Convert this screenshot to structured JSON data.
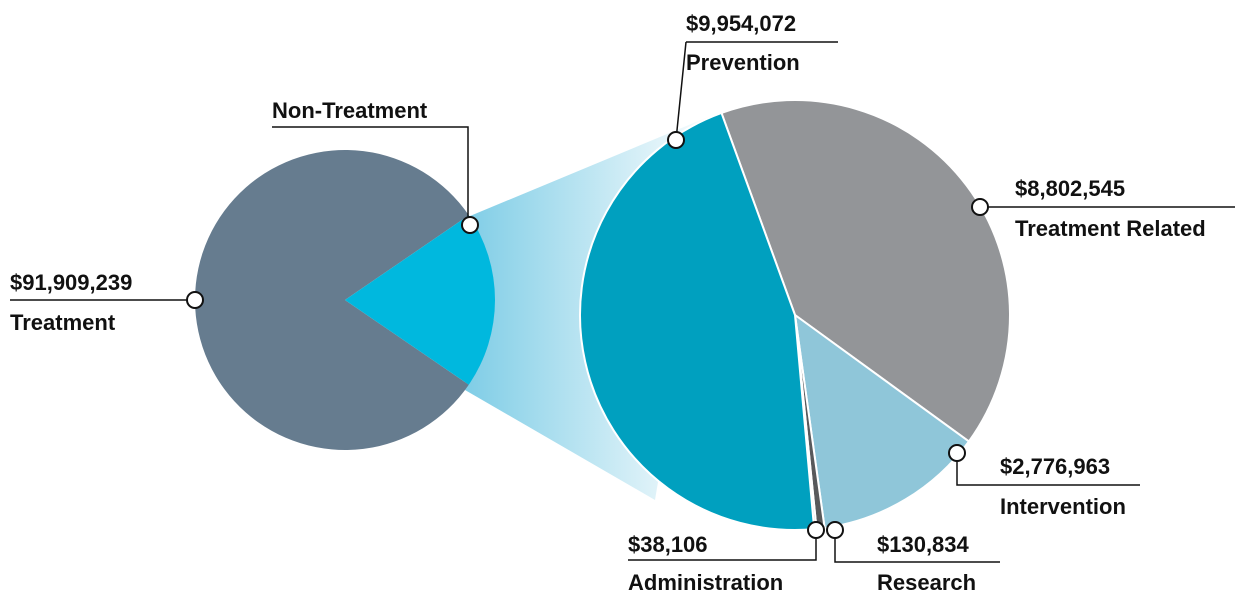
{
  "chart_data": {
    "type": "pie_of_pie",
    "categories": [
      "Treatment"
    ],
    "values": [
      91909239
    ],
    "value_labels": [
      "$91,909,239"
    ],
    "colors": [
      "#667c8f"
    ],
    "other_label": "Non-Treatment",
    "other_color": "#00b8de",
    "breakdown": {
      "categories": [
        "Treatment Related",
        "Intervention",
        "Research",
        "Administration",
        "Prevention"
      ],
      "values": [
        8802545,
        2776963,
        130834,
        38106,
        9954072
      ],
      "value_labels": [
        "$8,802,545",
        "$2,776,963",
        "$130,834",
        "$38,106",
        "$9,954,072"
      ],
      "colors": [
        "#939598",
        "#8fc6d9",
        "#58595b",
        "#b0b2b4",
        "#00a0bf"
      ]
    }
  }
}
